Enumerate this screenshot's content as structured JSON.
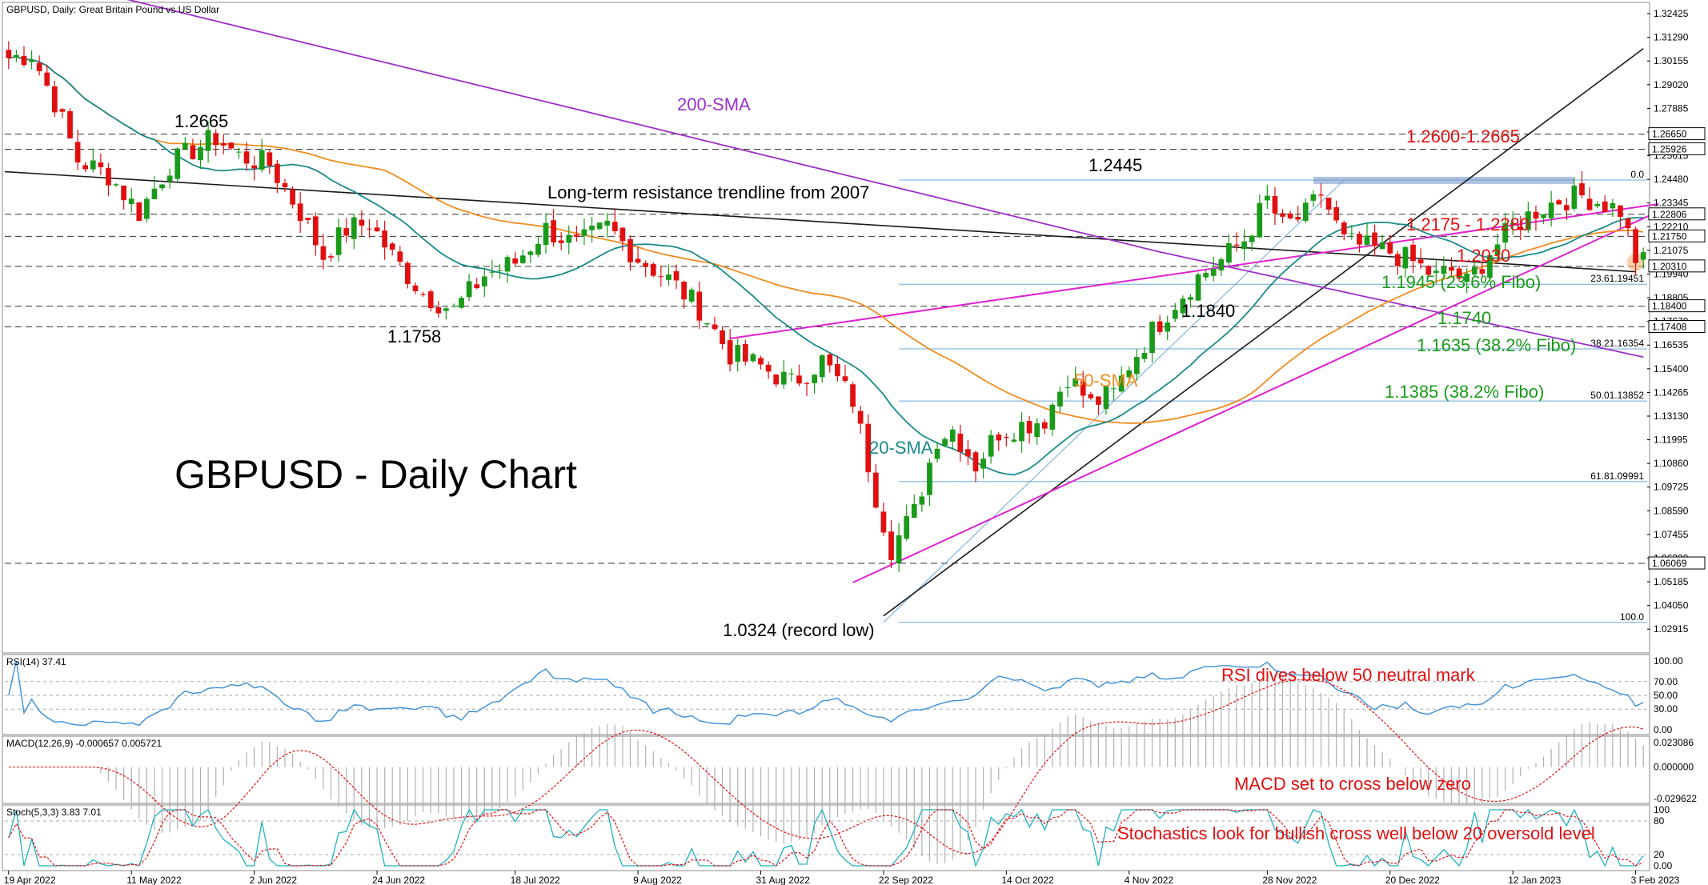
{
  "chart_data": [
    {
      "type": "candlestick",
      "header": "GBPUSD, Daily:  Great Britain Pound vs US Dollar",
      "title": "GBPUSD - Daily Chart",
      "ylim": [
        1.0185,
        1.3285
      ],
      "y_tick_labels": [
        "1.32425",
        "1.31290",
        "1.30155",
        "1.29020",
        "1.27885",
        "1.26750",
        "1.25615",
        "1.24480",
        "1.23345",
        "1.22210",
        "1.21075",
        "1.19940",
        "1.18805",
        "1.17670",
        "1.16535",
        "1.15400",
        "1.14265",
        "1.13130",
        "1.11995",
        "1.10860",
        "1.09725",
        "1.08590",
        "1.07455",
        "1.06320",
        "1.05185",
        "1.04050",
        "1.02915"
      ],
      "y_ticks": [
        1.32425,
        1.3129,
        1.30155,
        1.2902,
        1.27885,
        1.2675,
        1.25615,
        1.2448,
        1.23345,
        1.2221,
        1.21075,
        1.1994,
        1.18805,
        1.1767,
        1.16535,
        1.154,
        1.14265,
        1.1313,
        1.11995,
        1.1086,
        1.09725,
        1.0859,
        1.07455,
        1.0632,
        1.05185,
        1.0405,
        1.02915
      ],
      "x_tick_labels": [
        "19 Apr 2022",
        "11 May 2022",
        "2 Jun 2022",
        "24 Jun 2022",
        "18 Jul 2022",
        "9 Aug 2022",
        "31 Aug 2022",
        "22 Sep 2022",
        "14 Oct 2022",
        "4 Nov 2022",
        "28 Nov 2022",
        "20 Dec 2022",
        "12 Jan 2023",
        "3 Feb 2023"
      ],
      "x_tick_bars": [
        0,
        16,
        32,
        48,
        66,
        82,
        98,
        114,
        130,
        146,
        164,
        180,
        196,
        212
      ],
      "ohlc_waypoints": [
        [
          0,
          1.303
        ],
        [
          3,
          1.305
        ],
        [
          6,
          1.282
        ],
        [
          9,
          1.254
        ],
        [
          13,
          1.247
        ],
        [
          17,
          1.229
        ],
        [
          21,
          1.252
        ],
        [
          24,
          1.259
        ],
        [
          27,
          1.265
        ],
        [
          30,
          1.256
        ],
        [
          34,
          1.252
        ],
        [
          38,
          1.229
        ],
        [
          41,
          1.208
        ],
        [
          44,
          1.221
        ],
        [
          47,
          1.224
        ],
        [
          50,
          1.208
        ],
        [
          54,
          1.19
        ],
        [
          58,
          1.182
        ],
        [
          62,
          1.199
        ],
        [
          66,
          1.205
        ],
        [
          70,
          1.221
        ],
        [
          74,
          1.213
        ],
        [
          78,
          1.222
        ],
        [
          82,
          1.207
        ],
        [
          86,
          1.197
        ],
        [
          90,
          1.183
        ],
        [
          94,
          1.161
        ],
        [
          98,
          1.155
        ],
        [
          102,
          1.147
        ],
        [
          106,
          1.158
        ],
        [
          110,
          1.139
        ],
        [
          113,
          1.093
        ],
        [
          115,
          1.068
        ],
        [
          118,
          1.085
        ],
        [
          121,
          1.121
        ],
        [
          123,
          1.125
        ],
        [
          126,
          1.108
        ],
        [
          129,
          1.124
        ],
        [
          132,
          1.127
        ],
        [
          135,
          1.13
        ],
        [
          138,
          1.151
        ],
        [
          141,
          1.137
        ],
        [
          144,
          1.142
        ],
        [
          146,
          1.156
        ],
        [
          149,
          1.172
        ],
        [
          152,
          1.186
        ],
        [
          155,
          1.198
        ],
        [
          158,
          1.206
        ],
        [
          161,
          1.216
        ],
        [
          164,
          1.235
        ],
        [
          166,
          1.222
        ],
        [
          169,
          1.228
        ],
        [
          171,
          1.238
        ],
        [
          174,
          1.215
        ],
        [
          177,
          1.212
        ],
        [
          180,
          1.21
        ],
        [
          183,
          1.205
        ],
        [
          186,
          1.198
        ],
        [
          188,
          1.201
        ],
        [
          190,
          1.195
        ],
        [
          193,
          1.21
        ],
        [
          196,
          1.222
        ],
        [
          199,
          1.23
        ],
        [
          202,
          1.235
        ],
        [
          205,
          1.237
        ],
        [
          208,
          1.233
        ],
        [
          210,
          1.23
        ],
        [
          212,
          1.207
        ],
        [
          213,
          1.205
        ]
      ],
      "annotations": [
        "1.2665",
        "1.1758",
        "200-SMA",
        "1.2445",
        "Long-term resistance trendline from 2007",
        "1.2600-1.2665",
        "1.2175 - 1.2280",
        "1.2030",
        "1.1945 (23.6% Fibo)",
        "1.1840",
        "1.1740",
        "1.1635 (38.2% Fibo)",
        "1.1385 (38.2% Fibo)",
        "50-SMA",
        "20-SMA",
        "1.0324 (record low)"
      ],
      "fibo_labels": [
        "0.0",
        "23.61.19451",
        "38.21.16354",
        "50.01.13852",
        "61.81.09991",
        "100.0"
      ],
      "fibo_levels": [
        1.2445,
        1.19451,
        1.16354,
        1.13852,
        1.09991,
        1.0324
      ],
      "price_tags": [
        "1.26650",
        "1.25926",
        "1.22806",
        "1.21750",
        "1.20310",
        "1.18400",
        "1.17408",
        "1.06069"
      ],
      "price_tag_levels": [
        1.2665,
        1.25926,
        1.22806,
        1.2175,
        1.2031,
        1.184,
        1.17408,
        1.06069
      ],
      "dashed_levels": [
        1.2665,
        1.25926,
        1.22806,
        1.2175,
        1.2031,
        1.184,
        1.17408,
        1.06069
      ],
      "series": [
        {
          "name": "200-SMA",
          "color": "#9b30c8"
        },
        {
          "name": "50-SMA",
          "color": "#f28c1e"
        },
        {
          "name": "20-SMA",
          "color": "#1a8a8a"
        }
      ],
      "colors": {
        "bull": "#1a9a1a",
        "bear": "#e01010",
        "resistance": "#1a1a1a",
        "channel": "#e020d0",
        "fibo": "#6aa8d8",
        "red_ann": "#e01010",
        "green_ann": "#1a9a1a"
      }
    },
    {
      "type": "line",
      "header": "RSI(14) 37.41",
      "y_tick_labels": [
        "100.00",
        "70.00",
        "50.00",
        "30.00",
        "0.00"
      ],
      "y_ticks": [
        100,
        70,
        50,
        30,
        0
      ],
      "ylim": [
        0,
        100
      ],
      "annotation": "RSI dives below 50 neutral mark",
      "color": "#3b8fd8"
    },
    {
      "type": "bar",
      "header": "MACD(12,26,9) -0.000657 0.005721",
      "y_tick_labels": [
        "0.023086",
        "0.000000",
        "-0.029622"
      ],
      "y_ticks": [
        0.023086,
        0,
        -0.029622
      ],
      "ylim": [
        -0.029622,
        0.023086
      ],
      "annotation": "MACD set to cross below zero",
      "signal_color": "#e01010",
      "hist_color": "#b0b0b0"
    },
    {
      "type": "line",
      "header": "Stoch(5,3,3) 3.83 7.01",
      "y_tick_labels": [
        "100",
        "80",
        "20",
        "0.00"
      ],
      "y_ticks": [
        100,
        80,
        20,
        0
      ],
      "ylim": [
        0,
        100
      ],
      "annotation": "Stochastics look for bullish cross well below 20 oversold level",
      "main_color": "#20b0c0",
      "signal_color": "#e01010"
    }
  ]
}
